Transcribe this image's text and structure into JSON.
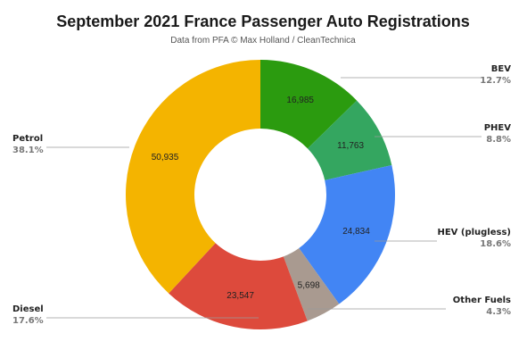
{
  "chart_data": {
    "type": "pie",
    "title": "September 2021 France Passenger Auto Registrations",
    "subtitle": "Data from PFA © Max Holland / CleanTechnica",
    "donut": true,
    "slices": [
      {
        "name": "BEV",
        "value": 16985,
        "label": "16,985",
        "percent": "12.7%",
        "color": "#2b9b0f"
      },
      {
        "name": "PHEV",
        "value": 11763,
        "label": "11,763",
        "percent": "8.8%",
        "color": "#34a660"
      },
      {
        "name": "HEV (plugless)",
        "value": 24834,
        "label": "24,834",
        "percent": "18.6%",
        "color": "#4285f4"
      },
      {
        "name": "Other Fuels",
        "value": 5698,
        "label": "5,698",
        "percent": "4.3%",
        "color": "#a99a90"
      },
      {
        "name": "Diesel",
        "value": 23547,
        "label": "23,547",
        "percent": "17.6%",
        "color": "#dd4a3c"
      },
      {
        "name": "Petrol",
        "value": 50935,
        "label": "50,935",
        "percent": "38.1%",
        "color": "#f4b400"
      }
    ]
  }
}
